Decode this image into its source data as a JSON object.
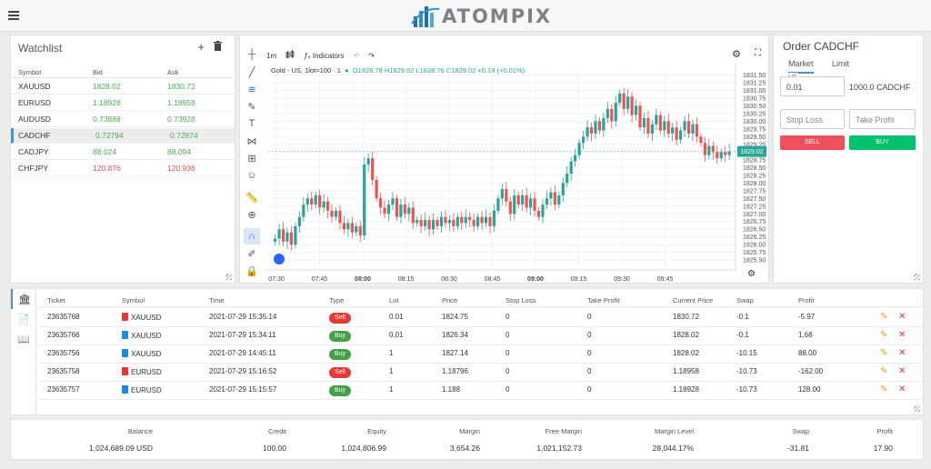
{
  "header": {
    "brand": "ATOMPIX",
    "menu_icon": "hamburger-icon",
    "logo_icon": "bar-chart-logo-icon"
  },
  "watchlist": {
    "title": "Watchlist",
    "icons": [
      "plus-icon",
      "trash-icon"
    ],
    "columns": [
      "Symbol",
      "Bid",
      "Ask"
    ],
    "rows": [
      {
        "symbol": "XAUUSD",
        "bid": "1828.02",
        "ask": "1830.72",
        "color": "#4caf50"
      },
      {
        "symbol": "EURUSD",
        "bid": "1.18928",
        "ask": "1.18958",
        "color": "#4caf50"
      },
      {
        "symbol": "AUDUSD",
        "bid": "0.73888",
        "ask": "0.73928",
        "color": "#4caf50"
      },
      {
        "symbol": "CADCHF",
        "bid": "0.72794",
        "ask": "0.72874",
        "color": "#4caf50",
        "selected": true
      },
      {
        "symbol": "CADJPY",
        "bid": "88.024",
        "ask": "88.094",
        "color": "#4caf50"
      },
      {
        "symbol": "CHFJPY",
        "bid": "120.876",
        "ask": "120.936",
        "color": "#e05050"
      }
    ]
  },
  "chart": {
    "toolbar": {
      "interval": "1m",
      "indicators_label": "Indicators"
    },
    "legend": {
      "title": "Gold - US, 1lot=100 · 1",
      "ohlc": "O1828.78 H1829.02 L1828.76 C1829.02 +0.18 (+0.01%)"
    },
    "current_price_label": "1829.02",
    "chart_data": {
      "type": "candlestick",
      "symbol": "Gold - US",
      "ylim": [
        1825.3,
        1831.6
      ],
      "y_ticks": [
        "1831.50",
        "1831.25",
        "1831.00",
        "1830.75",
        "1830.50",
        "1830.25",
        "1830.00",
        "1829.75",
        "1829.50",
        "1829.25",
        "1829.00",
        "1828.75",
        "1828.50",
        "1828.25",
        "1828.00",
        "1827.75",
        "1827.50",
        "1827.25",
        "1827.00",
        "1826.75",
        "1826.50",
        "1826.25",
        "1826.00",
        "1825.75",
        "1825.50"
      ],
      "x_ticks": [
        "07:30",
        "07:45",
        "08:00",
        "08:15",
        "08:30",
        "08:45",
        "09:00",
        "09:15",
        "09:30",
        "09:45"
      ],
      "up_color": "#26a69a",
      "down_color": "#ef5350",
      "closes": [
        1826.2,
        1826.5,
        1826.1,
        1826.4,
        1826.0,
        1826.6,
        1826.9,
        1827.3,
        1827.5,
        1827.3,
        1827.6,
        1827.2,
        1827.4,
        1827.1,
        1826.9,
        1827.1,
        1826.7,
        1826.5,
        1826.7,
        1826.4,
        1826.6,
        1826.3,
        1828.6,
        1828.8,
        1828.1,
        1827.5,
        1827.2,
        1827.0,
        1827.3,
        1827.5,
        1826.9,
        1827.3,
        1827.0,
        1827.2,
        1826.7,
        1826.8,
        1826.6,
        1826.8,
        1826.5,
        1826.8,
        1826.6,
        1826.9,
        1826.7,
        1826.8,
        1826.6,
        1826.9,
        1826.7,
        1826.9,
        1826.8,
        1826.6,
        1826.9,
        1826.7,
        1826.9,
        1826.6,
        1827.1,
        1827.5,
        1827.8,
        1827.4,
        1827.0,
        1827.6,
        1827.3,
        1827.6,
        1827.2,
        1827.5,
        1827.1,
        1826.9,
        1827.3,
        1827.5,
        1827.7,
        1827.3,
        1827.6,
        1828.0,
        1828.3,
        1828.7,
        1828.9,
        1829.3,
        1829.5,
        1829.8,
        1829.6,
        1830.0,
        1829.7,
        1830.1,
        1830.4,
        1830.0,
        1830.6,
        1830.9,
        1830.4,
        1830.8,
        1830.2,
        1830.5,
        1829.8,
        1830.1,
        1829.6,
        1829.9,
        1830.2,
        1829.7,
        1830.0,
        1829.6,
        1829.8,
        1829.4,
        1829.7,
        1830.0,
        1829.6,
        1829.9,
        1829.5,
        1829.3,
        1828.9,
        1829.2,
        1829.0,
        1828.8,
        1829.0,
        1828.9,
        1829.02
      ]
    }
  },
  "order": {
    "title": "Order CADCHF",
    "tabs": [
      "Market",
      "Limit"
    ],
    "lot_label": "Lot",
    "lot_value": "0.01",
    "amount": "1000.0 CADCHF",
    "stop_loss_placeholder": "Stop Loss",
    "take_profit_placeholder": "Take Profit",
    "sell_label": "SELL",
    "buy_label": "BUY",
    "sell_color": "#f0505d",
    "buy_color": "#00c16e"
  },
  "positions": {
    "side_icons": [
      "bank-icon",
      "document-icon",
      "book-icon"
    ],
    "columns": [
      "Ticket",
      "Symbol",
      "Time",
      "Type",
      "Lot",
      "Price",
      "Stop Loss",
      "Take Profit",
      "Current Price",
      "Swap",
      "Profit"
    ],
    "rows": [
      {
        "ticket": "23635768",
        "symbol": "XAUUSD",
        "time": "2021-07-29 15:35:14",
        "type": "Sell",
        "lot": "0.01",
        "price": "1824.75",
        "sl": "0",
        "tp": "0",
        "current": "1830.72",
        "swap": "-0.1",
        "profit": "-5.97"
      },
      {
        "ticket": "23635766",
        "symbol": "XAUUSD",
        "time": "2021-07-29 15:34:11",
        "type": "Buy",
        "lot": "0.01",
        "price": "1826.34",
        "sl": "0",
        "tp": "0",
        "current": "1828.02",
        "swap": "-0.1",
        "profit": "1.68"
      },
      {
        "ticket": "23635756",
        "symbol": "XAUUSD",
        "time": "2021-07-29 14:45:11",
        "type": "Buy",
        "lot": "1",
        "price": "1827.14",
        "sl": "0",
        "tp": "0",
        "current": "1828.02",
        "swap": "-10.15",
        "profit": "88.00"
      },
      {
        "ticket": "23635758",
        "symbol": "EURUSD",
        "time": "2021-07-29 15:16:52",
        "type": "Sell",
        "lot": "1",
        "price": "1.18796",
        "sl": "0",
        "tp": "0",
        "current": "1.18958",
        "swap": "-10.73",
        "profit": "-162.00"
      },
      {
        "ticket": "23635757",
        "symbol": "EURUSD",
        "time": "2021-07-29 15:15:57",
        "type": "Buy",
        "lot": "1",
        "price": "1.188",
        "sl": "0",
        "tp": "0",
        "current": "1.18928",
        "swap": "-10.73",
        "profit": "128.00"
      }
    ]
  },
  "summary": {
    "labels": [
      "Balance",
      "Credit",
      "Equity",
      "Margin",
      "Free Margin",
      "Margin Level",
      "Swap",
      "Profit"
    ],
    "values": [
      "1,024,689.09 USD",
      "100.00",
      "1,024,806.99",
      "3,654.26",
      "1,021,152.73",
      "28,044.17%",
      "-31.81",
      "17.90"
    ]
  }
}
